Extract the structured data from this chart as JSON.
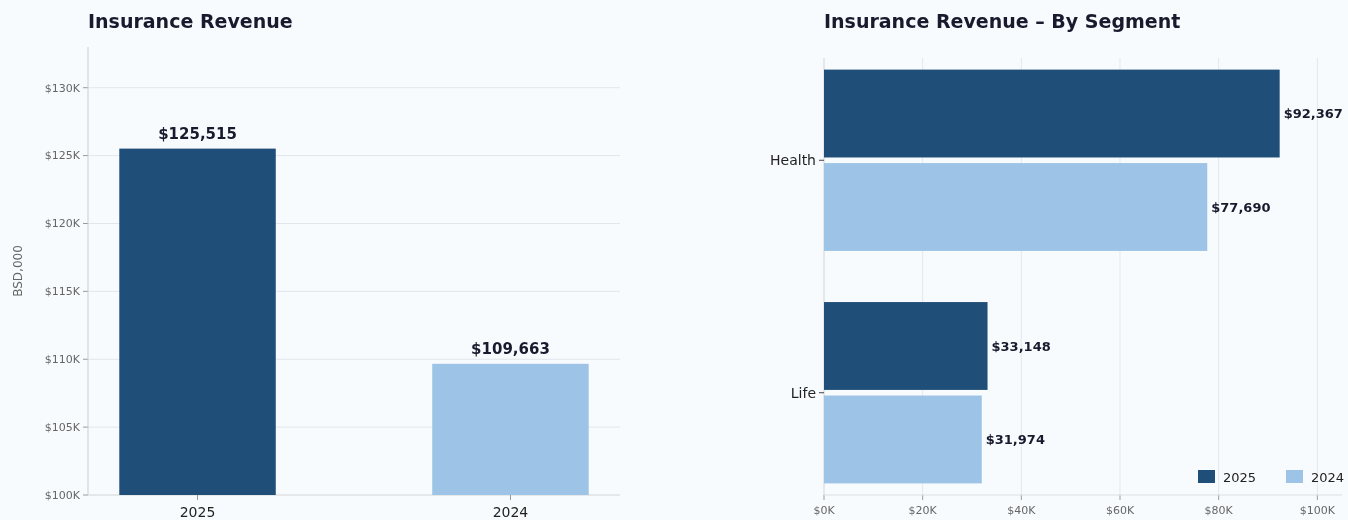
{
  "chart_data": [
    {
      "type": "bar",
      "title": "Insurance Revenue",
      "ylabel": "BSD,000",
      "categories": [
        "2025",
        "2024"
      ],
      "values": [
        125515,
        109663
      ],
      "colors": [
        "#1f4e79",
        "#9dc3e6"
      ],
      "value_labels": [
        "$125,515",
        "$109,663"
      ],
      "ylim": [
        100000,
        133000
      ],
      "yticks": [
        {
          "value": 100000,
          "label": "$100K"
        },
        {
          "value": 105000,
          "label": "$105K"
        },
        {
          "value": 110000,
          "label": "$110K"
        },
        {
          "value": 115000,
          "label": "$115K"
        },
        {
          "value": 120000,
          "label": "$120K"
        },
        {
          "value": 125000,
          "label": "$125K"
        },
        {
          "value": 130000,
          "label": "$130K"
        }
      ],
      "grid": "y"
    },
    {
      "type": "bar",
      "title": "Insurance Revenue – By Segment",
      "orientation": "horizontal",
      "categories": [
        "Health",
        "Life"
      ],
      "series": [
        {
          "name": "2025",
          "color": "#1f4e79",
          "values": [
            92367,
            33148
          ],
          "value_labels": [
            "$92,367",
            "$33,148"
          ]
        },
        {
          "name": "2024",
          "color": "#9dc3e6",
          "values": [
            77690,
            31974
          ],
          "value_labels": [
            "$77,690",
            "$31,974"
          ]
        }
      ],
      "xlim": [
        0,
        105000
      ],
      "xticks": [
        {
          "value": 0,
          "label": "$0K"
        },
        {
          "value": 20000,
          "label": "$20K"
        },
        {
          "value": 40000,
          "label": "$40K"
        },
        {
          "value": 60000,
          "label": "$60K"
        },
        {
          "value": 80000,
          "label": "$80K"
        },
        {
          "value": 100000,
          "label": "$100K"
        }
      ],
      "grid": "x",
      "legend": "bottom right"
    }
  ]
}
